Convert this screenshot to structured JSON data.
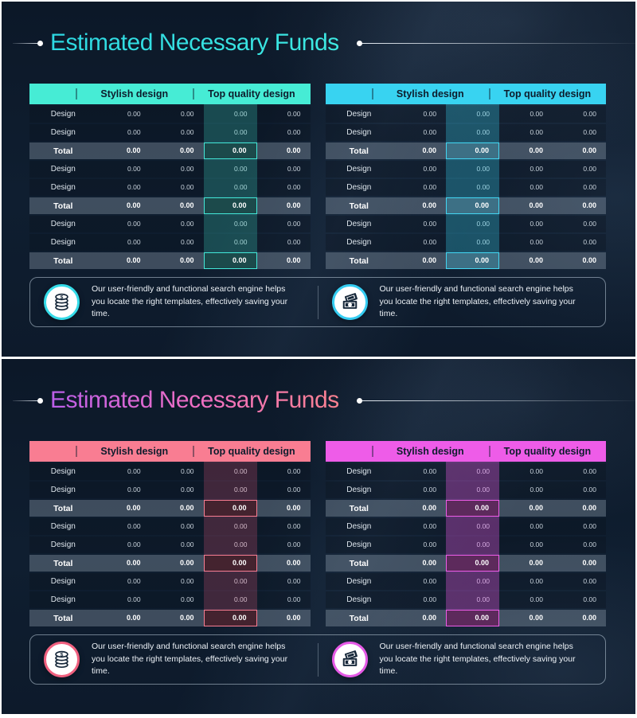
{
  "note_text": "Our user-friendly and functional search engine helps you locate the right templates, effectively saving your time.",
  "table": {
    "column_groups": [
      "Stylish design",
      "Top quality design"
    ],
    "row_groups": 3,
    "row_pattern": [
      "Design",
      "Design",
      "Total"
    ],
    "total_label": "Total",
    "value": "0.00",
    "values_per_row": 4
  },
  "slides": [
    {
      "title": "Estimated Necessary Funds",
      "title_gradient": [
        "#2dd8e2",
        "#3ee9e2"
      ],
      "tables": [
        {
          "side": "left",
          "header_bg": "#46ecd5",
          "band": "rgba(64,220,200,0.26)",
          "total_cell_bg": "#1c4a4b",
          "accent": "#43e8d8",
          "highlight_col": 3
        },
        {
          "side": "right",
          "header_bg": "#38d3f1",
          "band": "rgba(56,211,241,0.30)",
          "total_cell_bg": "#3d7085",
          "accent": "#43d6f2",
          "highlight_col": 2
        }
      ],
      "notes": [
        {
          "icon": "coins-icon",
          "ring": "#35dbe8"
        },
        {
          "icon": "banknotes-icon",
          "ring": "#35cdf2"
        }
      ]
    },
    {
      "title": "Estimated Necessary Funds",
      "title_gradient": [
        "#bb5ee8",
        "#ee6ec4",
        "#fb8290"
      ],
      "tables": [
        {
          "side": "left",
          "header_bg": "#f97d92",
          "band": "rgba(250,95,130,0.22)",
          "total_cell_bg": "#44232f",
          "accent": "#f97d92",
          "highlight_col": 3
        },
        {
          "side": "right",
          "header_bg": "#ee5ce8",
          "band": "rgba(238,92,232,0.34)",
          "total_cell_bg": "#5d2a5c",
          "accent": "#ee5ce8",
          "highlight_col": 2
        }
      ],
      "notes": [
        {
          "icon": "coins-icon",
          "ring": "#f0607f"
        },
        {
          "icon": "banknotes-icon",
          "ring": "#e55ae6"
        }
      ]
    }
  ]
}
